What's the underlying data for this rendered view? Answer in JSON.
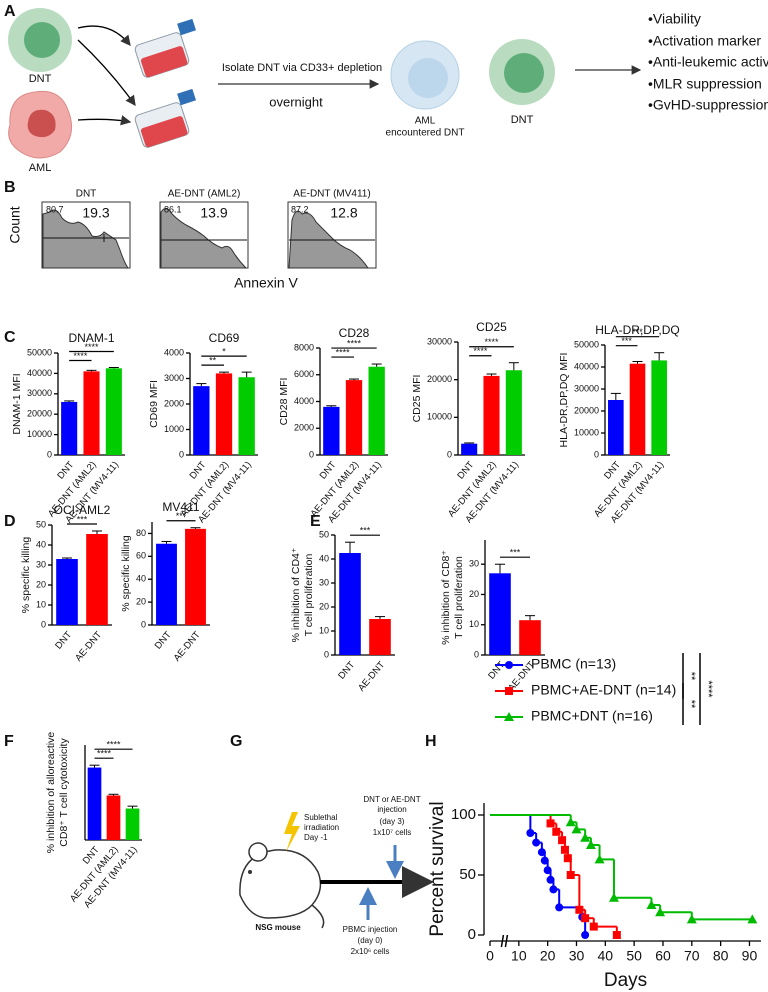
{
  "panel_labels": [
    "A",
    "B",
    "C",
    "D",
    "E",
    "F",
    "G",
    "H"
  ],
  "panel_a": {
    "cell_labels": [
      "DNT",
      "AML"
    ],
    "step_text": "Isolate DNT via CD33+ depletion",
    "step_time": "overnight",
    "encountered_label": [
      "AML",
      "encountered DNT"
    ],
    "result_label": "DNT",
    "readouts": [
      "•Viability",
      "•Activation marker",
      "•Anti-leukemic activity",
      "•MLR suppression",
      "•GvHD-suppression"
    ]
  },
  "panel_b": {
    "y_label": "Count",
    "x_label": "Annexin V",
    "plots": [
      {
        "title": "DNT",
        "left_value": "80.7",
        "right_value": "19.3"
      },
      {
        "title": "AE-DNT (AML2)",
        "left_value": "86.1",
        "right_value": "13.9"
      },
      {
        "title": "AE-DNT (MV411)",
        "left_value": "87.2",
        "right_value": "12.8"
      }
    ]
  },
  "panel_g": {
    "irradiation": [
      "Sublethal",
      "irradiation",
      "Day -1"
    ],
    "injection": [
      "DNT or AE-DNT",
      "injection",
      "(day 3)",
      "1x10⁷ cells"
    ],
    "pbmc": [
      "PBMC injection",
      "(day 0)",
      "2x10⁶ cells"
    ],
    "mouse": "NSG mouse"
  },
  "chart_data": [
    {
      "type": "bar",
      "title": "DNAM-1",
      "y_label": [
        "DNAM-1 MFI"
      ],
      "categories": [
        "DNT",
        "AE-DNT (AML2)",
        "AE-DNT (MV4-11)"
      ],
      "values": [
        26000,
        41000,
        42500
      ],
      "errors": [
        500,
        500,
        400
      ],
      "colors": [
        "#0000ff",
        "#ff0000",
        "#00cc00"
      ],
      "ylim": [
        0,
        50000
      ],
      "yticks": [
        0,
        10000,
        20000,
        30000,
        40000,
        50000
      ],
      "significance": [
        "****",
        "****"
      ]
    },
    {
      "type": "bar",
      "title": "CD69",
      "y_label": [
        "CD69 MFI"
      ],
      "categories": [
        "DNT",
        "AE-DNT (AML2)",
        "AE-DNT (MV4-11)"
      ],
      "values": [
        2700,
        3200,
        3050
      ],
      "errors": [
        100,
        50,
        200
      ],
      "colors": [
        "#0000ff",
        "#ff0000",
        "#00cc00"
      ],
      "ylim": [
        0,
        4000
      ],
      "yticks": [
        0,
        1000,
        2000,
        3000,
        4000
      ],
      "significance": [
        "**",
        "*"
      ]
    },
    {
      "type": "bar",
      "title": "CD28",
      "y_label": [
        "CD28 MFI"
      ],
      "categories": [
        "DNT",
        "AE-DNT (AML2)",
        "AE-DNT (MV4-11)"
      ],
      "values": [
        3600,
        5600,
        6600
      ],
      "errors": [
        80,
        80,
        200
      ],
      "colors": [
        "#0000ff",
        "#ff0000",
        "#00cc00"
      ],
      "ylim": [
        0,
        8000
      ],
      "yticks": [
        0,
        2000,
        4000,
        6000,
        8000
      ],
      "significance": [
        "****",
        "****"
      ]
    },
    {
      "type": "bar",
      "title": "CD25",
      "y_label": [
        "CD25 MFI"
      ],
      "categories": [
        "DNT",
        "AE-DNT (AML2)",
        "AE-DNT (MV4-11)"
      ],
      "values": [
        3000,
        21000,
        22500
      ],
      "errors": [
        200,
        500,
        2000
      ],
      "colors": [
        "#0000ff",
        "#ff0000",
        "#00cc00"
      ],
      "ylim": [
        0,
        30000
      ],
      "yticks": [
        0,
        10000,
        20000,
        30000
      ],
      "significance": [
        "****",
        "****"
      ]
    },
    {
      "type": "bar",
      "title": "HLA-DR,DP,DQ",
      "y_label": [
        "HLA-DR,DP,DQ MFI"
      ],
      "categories": [
        "DNT",
        "AE-DNT (AML2)",
        "AE-DNT (MV4-11)"
      ],
      "values": [
        25000,
        41500,
        43000
      ],
      "errors": [
        3000,
        1000,
        3500
      ],
      "colors": [
        "#0000ff",
        "#ff0000",
        "#00cc00"
      ],
      "ylim": [
        0,
        50000
      ],
      "yticks": [
        0,
        10000,
        20000,
        30000,
        40000,
        50000
      ],
      "significance": [
        "***",
        "***"
      ]
    },
    {
      "type": "bar",
      "title": "OCI-AML2",
      "y_label": [
        "% specific killing"
      ],
      "categories": [
        "DNT",
        "AE-DNT"
      ],
      "values": [
        33,
        45.5
      ],
      "errors": [
        0.5,
        1.5
      ],
      "colors": [
        "#0000ff",
        "#ff0000"
      ],
      "ylim": [
        0,
        50
      ],
      "yticks": [
        0,
        10,
        20,
        30,
        40,
        50
      ],
      "significance": [
        "***"
      ]
    },
    {
      "type": "bar",
      "title": "MV411",
      "y_label": [
        "% specific killing"
      ],
      "categories": [
        "DNT",
        "AE-DNT"
      ],
      "values": [
        71,
        84
      ],
      "errors": [
        2,
        1
      ],
      "colors": [
        "#0000ff",
        "#ff0000"
      ],
      "ylim": [
        0,
        90
      ],
      "yticks": [
        0,
        20,
        40,
        60,
        80
      ],
      "significance": [
        "***"
      ]
    },
    {
      "type": "bar",
      "y_label": [
        "% inhibition of CD4⁺",
        "T cell proliferation"
      ],
      "categories": [
        "DNT",
        "AE-DNT"
      ],
      "values": [
        42.5,
        15
      ],
      "errors": [
        4.5,
        1
      ],
      "colors": [
        "#0000ff",
        "#ff0000"
      ],
      "ylim": [
        0,
        50
      ],
      "yticks": [
        0,
        10,
        20,
        30,
        40,
        50
      ],
      "significance": [
        "***"
      ]
    },
    {
      "type": "bar",
      "y_label": [
        "% inhibition of CD8⁺",
        "T cell proliferation"
      ],
      "categories": [
        "DNT",
        "AE-DNT"
      ],
      "values": [
        27,
        11.5
      ],
      "errors": [
        3,
        1.5
      ],
      "colors": [
        "#0000ff",
        "#ff0000"
      ],
      "ylim": [
        0,
        38
      ],
      "yticks": [
        0,
        10,
        20,
        30
      ],
      "significance": [
        "***"
      ]
    },
    {
      "type": "bar",
      "y_label": [
        "% inhibition of alloreactive",
        "CD8⁺ T cell cytotoxicity"
      ],
      "categories": [
        "DNT",
        "AE-DNT (AML2)",
        "AE-DNT (MV4-11)"
      ],
      "values": [
        61,
        37.5,
        26.5
      ],
      "errors": [
        2,
        1,
        2
      ],
      "colors": [
        "#0000ff",
        "#ff0000",
        "#00cc00"
      ],
      "ylim": [
        0,
        80
      ],
      "significance": [
        "****",
        "****"
      ]
    },
    {
      "type": "survival",
      "x_label": "Days",
      "y_label": "Percent survival",
      "xlim": [
        0,
        94
      ],
      "xticks": [
        0,
        10,
        20,
        30,
        40,
        50,
        60,
        70,
        80,
        90
      ],
      "ylim": [
        0,
        110
      ],
      "yticks": [
        0,
        50,
        100
      ],
      "series": [
        {
          "name": "PBMC (n=13)",
          "color": "#0000ff",
          "marker": "circle",
          "x": [
            0,
            14,
            16,
            18,
            19,
            20,
            21,
            22,
            24,
            32,
            33
          ],
          "values": [
            100,
            85,
            77,
            69,
            62,
            54,
            46,
            38,
            23,
            15,
            0
          ]
        },
        {
          "name": "PBMC+AE-DNT (n=14)",
          "color": "#ff0000",
          "marker": "square",
          "x": [
            0,
            21,
            23,
            25,
            26,
            27,
            28,
            31,
            33,
            36,
            44
          ],
          "values": [
            100,
            93,
            86,
            79,
            71,
            64,
            50,
            21,
            14,
            7,
            0
          ]
        },
        {
          "name": "PBMC+DNT (n=16)",
          "color": "#00bb00",
          "marker": "triangle",
          "x": [
            0,
            28,
            30,
            33,
            35,
            38,
            43,
            56,
            59,
            70,
            91
          ],
          "values": [
            100,
            94,
            88,
            81,
            75,
            63,
            31,
            25,
            19,
            13,
            13
          ]
        }
      ],
      "significance": [
        "**",
        "**",
        "****"
      ]
    }
  ]
}
